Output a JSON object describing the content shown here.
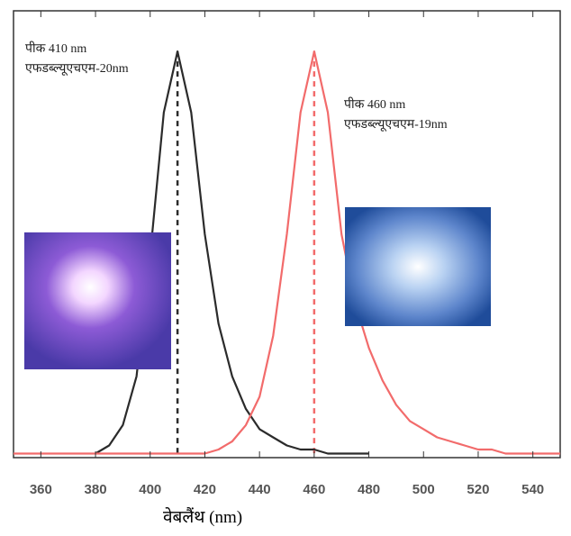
{
  "chart_data": {
    "type": "line",
    "x": [
      350,
      355,
      360,
      365,
      370,
      375,
      380,
      385,
      390,
      395,
      400,
      405,
      410,
      415,
      420,
      425,
      430,
      435,
      440,
      445,
      450,
      455,
      460,
      465,
      470,
      475,
      480,
      485,
      490,
      495,
      500,
      505,
      510,
      515,
      520,
      525,
      530,
      535,
      540,
      545,
      550
    ],
    "series": [
      {
        "color": "#2b2b2b",
        "values": [
          null,
          null,
          null,
          null,
          null,
          null,
          0.01,
          0.03,
          0.08,
          0.2,
          0.5,
          0.85,
          1.0,
          0.85,
          0.55,
          0.33,
          0.2,
          0.12,
          0.07,
          0.05,
          0.03,
          0.02,
          0.02,
          0.01,
          0.01,
          0.01,
          0.01,
          null,
          null,
          null,
          null,
          null,
          null,
          null,
          null,
          null,
          null,
          null,
          null,
          null,
          null
        ]
      },
      {
        "color": "#f26b6b",
        "values": [
          0.01,
          0.01,
          0.01,
          0.01,
          0.01,
          0.01,
          0.01,
          0.01,
          0.01,
          0.01,
          0.01,
          0.01,
          0.01,
          0.01,
          0.01,
          0.02,
          0.04,
          0.08,
          0.15,
          0.3,
          0.55,
          0.85,
          1.0,
          0.85,
          0.55,
          0.38,
          0.27,
          0.19,
          0.13,
          0.09,
          0.07,
          0.05,
          0.04,
          0.03,
          0.02,
          0.02,
          0.01,
          0.01,
          0.01,
          0.01,
          0.01
        ]
      }
    ],
    "xlim": [
      350,
      550
    ],
    "xticks": [
      360,
      380,
      400,
      420,
      440,
      460,
      480,
      500,
      520,
      540
    ],
    "ylim": [
      0,
      1.1
    ],
    "peak_lines": [
      {
        "x": 410,
        "color": "#2b2b2b"
      },
      {
        "x": 460,
        "color": "#f26b6b"
      }
    ],
    "xlabel": "वेबलैंथ (nm)",
    "annotations": [
      {
        "lines": [
          "पीक 410 nm",
          "एफडब्ल्यूएचएम-20nm"
        ]
      },
      {
        "lines": [
          "पीक 460 nm",
          "एफडब्ल्यूएचएम-19nm"
        ]
      }
    ]
  }
}
